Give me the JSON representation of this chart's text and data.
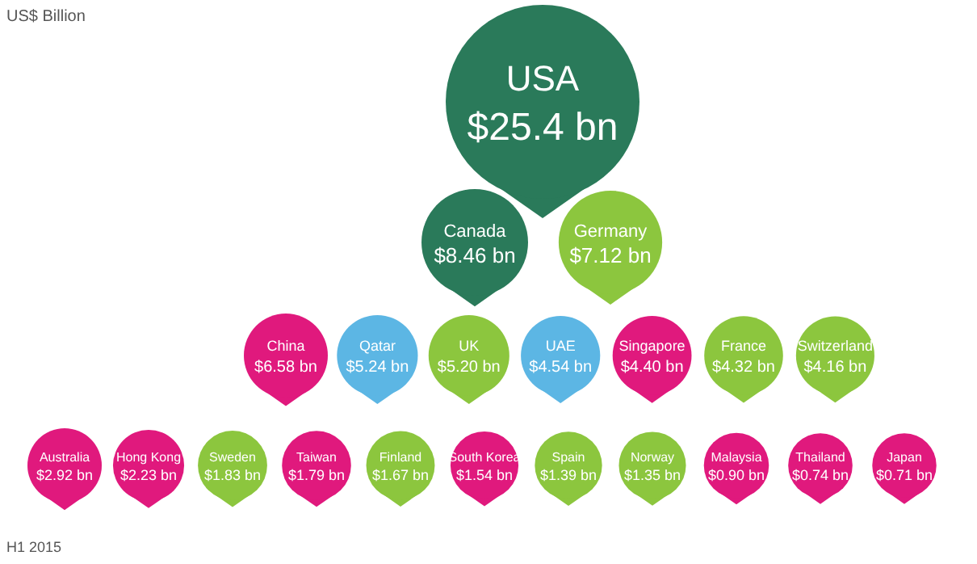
{
  "chart_data": {
    "type": "other",
    "title": "US$ Billion",
    "categories": [
      "USA",
      "Canada",
      "Germany",
      "China",
      "Qatar",
      "UK",
      "UAE",
      "Singapore",
      "France",
      "Switzerland",
      "Australia",
      "Hong Kong",
      "Sweden",
      "Taiwan",
      "Finland",
      "South Korea",
      "Spain",
      "Norway",
      "Malaysia",
      "Thailand",
      "Japan"
    ],
    "values": [
      25.4,
      8.46,
      7.12,
      6.58,
      5.24,
      5.2,
      4.54,
      4.4,
      4.32,
      4.16,
      2.92,
      2.23,
      1.83,
      1.79,
      1.67,
      1.54,
      1.39,
      1.35,
      0.9,
      0.74,
      0.71
    ],
    "value_labels": [
      "$25.4 bn",
      "$8.46 bn",
      "$7.12 bn",
      "$6.58 bn",
      "$5.24 bn",
      "$5.20 bn",
      "$4.54 bn",
      "$4.40 bn",
      "$4.32 bn",
      "$4.16 bn",
      "$2.92 bn",
      "$2.23 bn",
      "$1.83 bn",
      "$1.79 bn",
      "$1.67 bn",
      "$1.54 bn",
      "$1.39 bn",
      "$1.35 bn",
      "$0.90 bn",
      "$0.74 bn",
      "$0.71 bn"
    ],
    "colors": [
      "#2a7a5a",
      "#2a7a5a",
      "#8cc63e",
      "#e0197d",
      "#5cb6e4",
      "#8cc63e",
      "#5cb6e4",
      "#e0197d",
      "#8cc63e",
      "#8cc63e",
      "#e0197d",
      "#e0197d",
      "#8cc63e",
      "#e0197d",
      "#8cc63e",
      "#e0197d",
      "#8cc63e",
      "#8cc63e",
      "#e0197d",
      "#e0197d",
      "#e0197d"
    ],
    "annotations": [
      "H1 2015"
    ]
  }
}
